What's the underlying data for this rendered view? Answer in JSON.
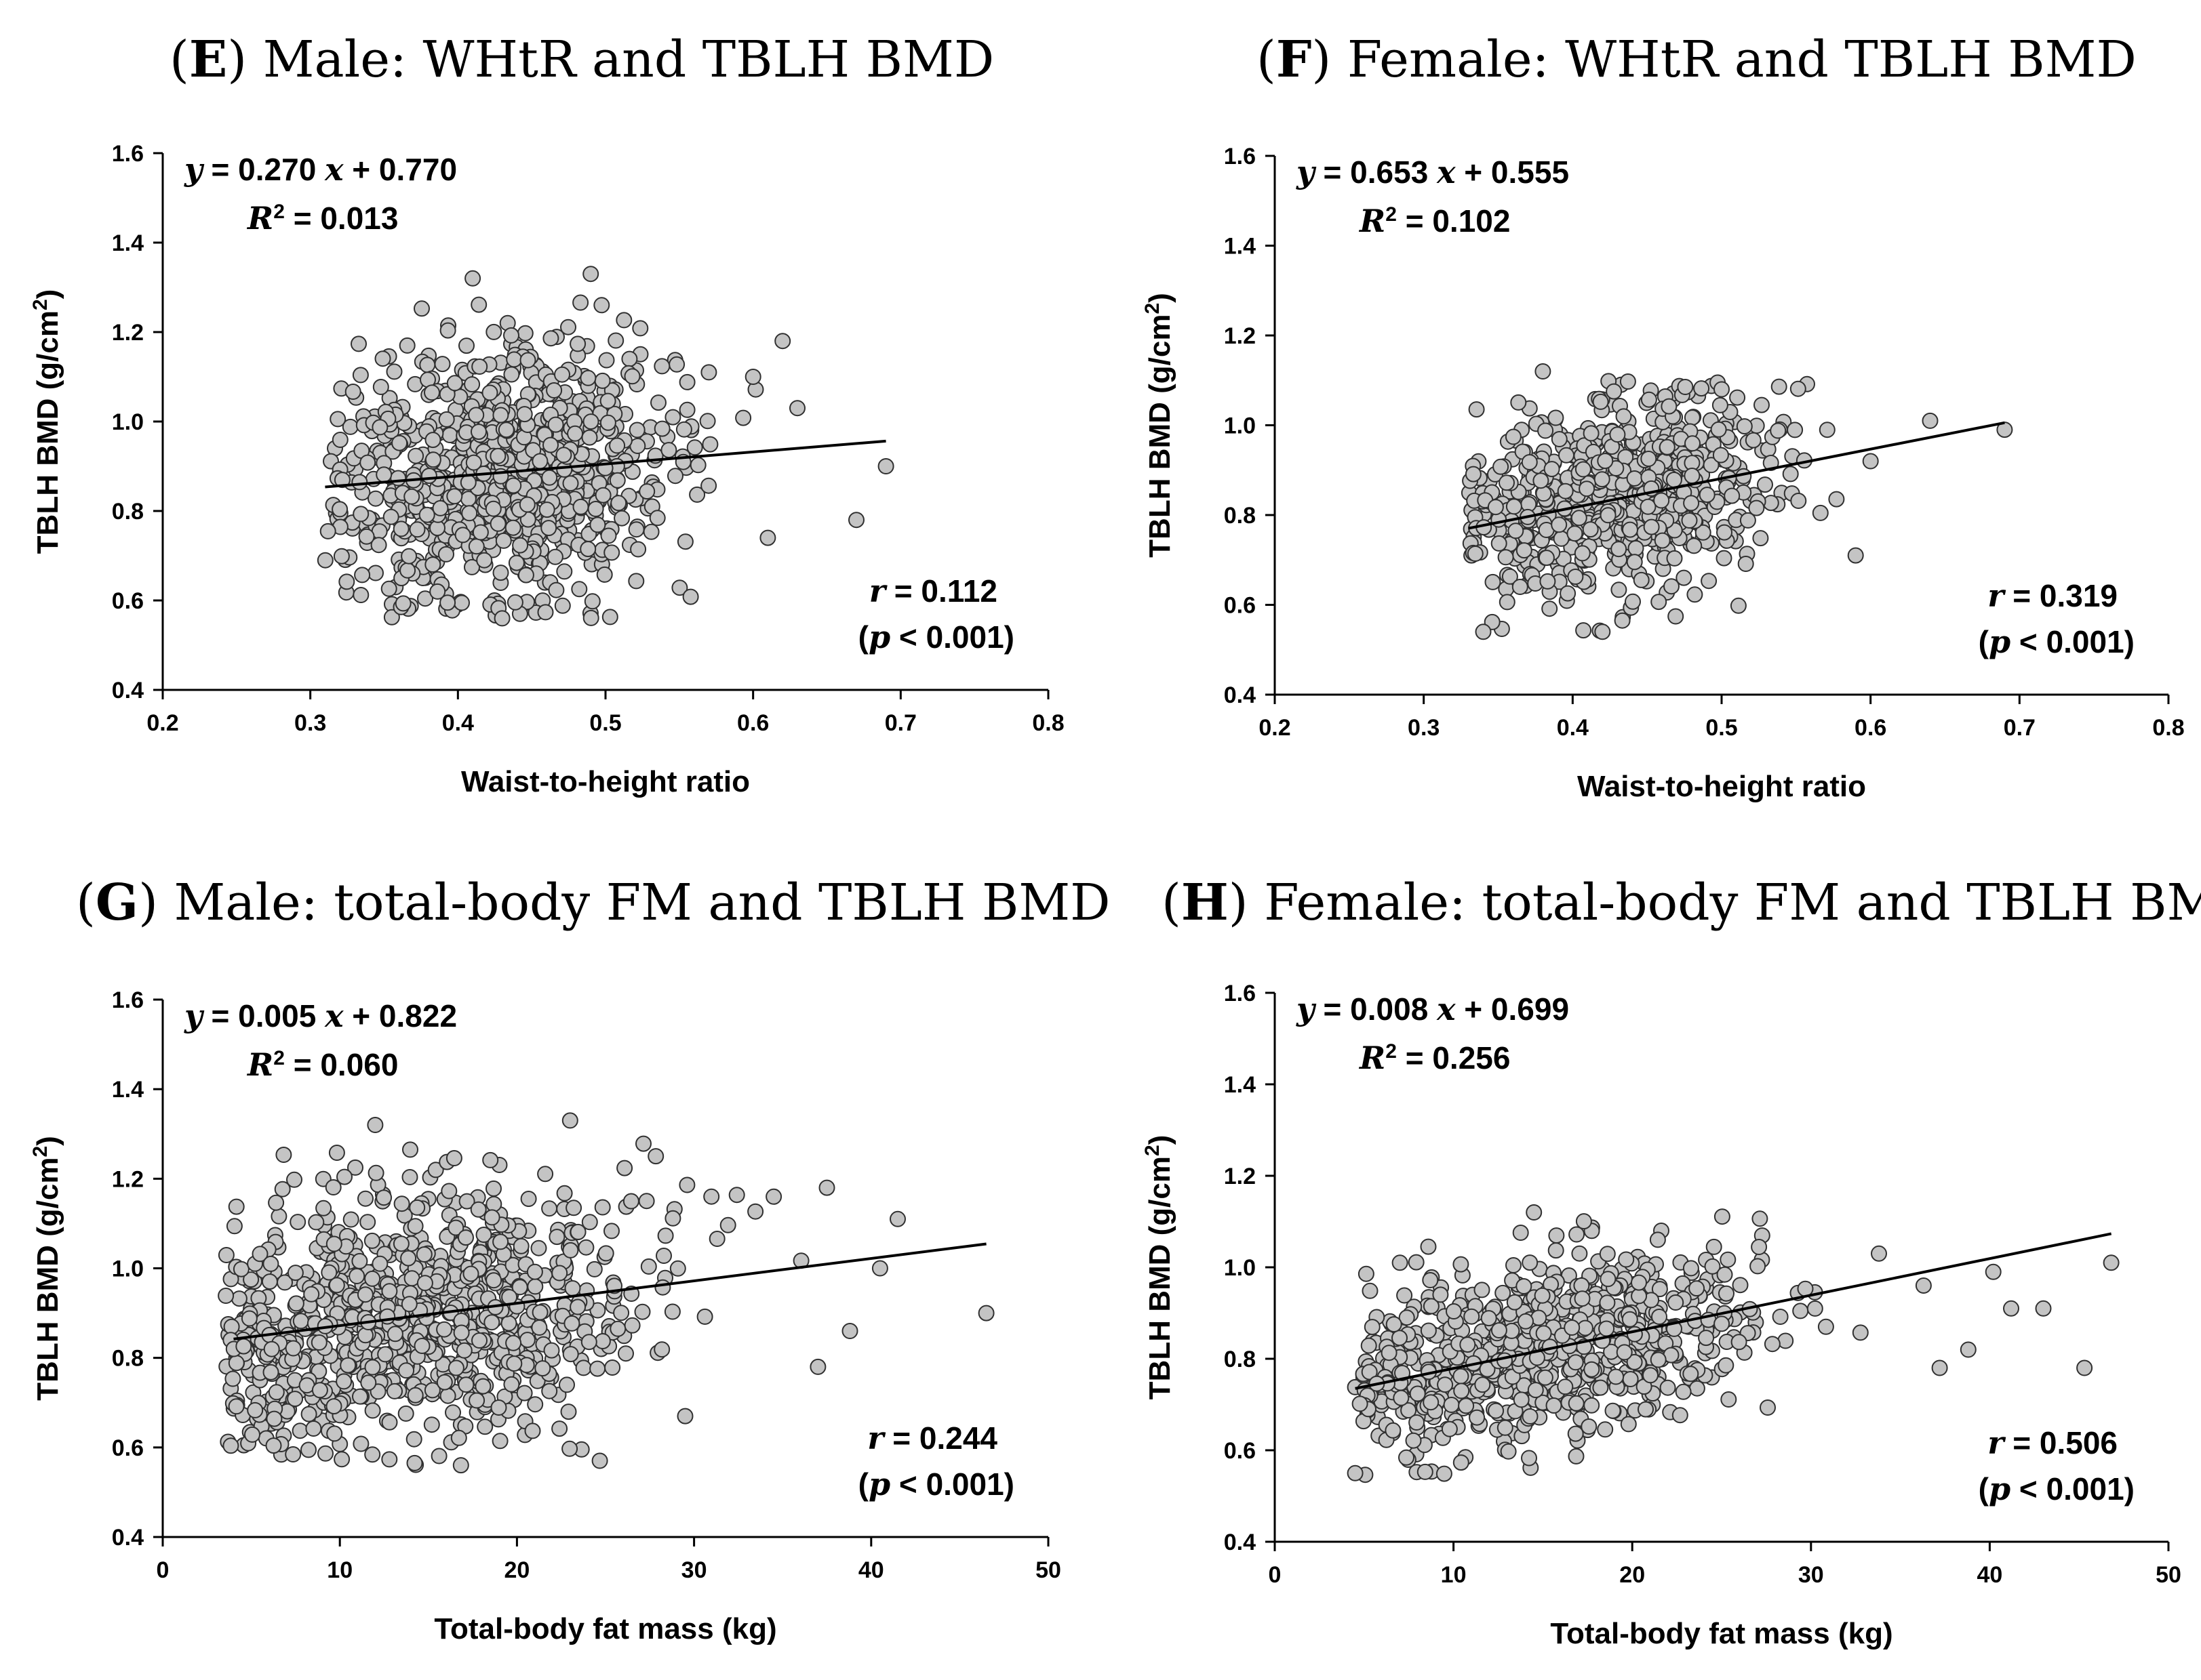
{
  "chart_data": [
    {
      "panel": "E",
      "type": "scatter",
      "title_letter": "E",
      "title_text": "Male: WHtR and TBLH BMD",
      "xlabel": "Waist-to-height ratio",
      "ylabel": "TBLH BMD (g/cm",
      "ylabel_sup": "2",
      "ylabel_close": ")",
      "xlim": [
        0.2,
        0.8
      ],
      "ylim": [
        0.4,
        1.6
      ],
      "xticks": [
        "0.2",
        "0.3",
        "0.4",
        "0.5",
        "0.6",
        "0.7",
        "0.8"
      ],
      "yticks": [
        "0.4",
        "0.6",
        "0.8",
        "1.0",
        "1.2",
        "1.4",
        "1.6"
      ],
      "equation": {
        "slope": "0.270",
        "intercept": "0.770",
        "r2": "0.013"
      },
      "r": "0.112",
      "p": "< 0.001",
      "fit": {
        "slope": 0.27,
        "intercept": 0.77,
        "x_start": 0.31,
        "x_end": 0.69
      },
      "points_gen": {
        "n": 900,
        "seed": 11,
        "x_mean": 0.43,
        "x_sd": 0.055,
        "x_min": 0.31,
        "x_max": 0.69,
        "resid_sd": 0.145,
        "y_min": 0.56,
        "y_max": 1.33
      },
      "extra_points": [
        [
          0.41,
          1.32
        ],
        [
          0.49,
          1.33
        ],
        [
          0.62,
          1.18
        ],
        [
          0.69,
          0.9
        ],
        [
          0.67,
          0.78
        ],
        [
          0.6,
          1.1
        ],
        [
          0.61,
          0.74
        ],
        [
          0.63,
          1.03
        ],
        [
          0.57,
          1.11
        ],
        [
          0.43,
          0.56
        ]
      ]
    },
    {
      "panel": "F",
      "type": "scatter",
      "title_letter": "F",
      "title_text": "Female: WHtR and TBLH BMD",
      "xlabel": "Waist-to-height ratio",
      "ylabel": "TBLH BMD (g/cm",
      "ylabel_sup": "2",
      "ylabel_close": ")",
      "xlim": [
        0.2,
        0.8
      ],
      "ylim": [
        0.4,
        1.6
      ],
      "xticks": [
        "0.2",
        "0.3",
        "0.4",
        "0.5",
        "0.6",
        "0.7",
        "0.8"
      ],
      "yticks": [
        "0.4",
        "0.6",
        "0.8",
        "1.0",
        "1.2",
        "1.4",
        "1.6"
      ],
      "equation": {
        "slope": "0.653",
        "intercept": "0.555",
        "r2": "0.102"
      },
      "r": "0.319",
      "p": "< 0.001",
      "fit": {
        "slope": 0.653,
        "intercept": 0.555,
        "x_start": 0.33,
        "x_end": 0.69
      },
      "points_gen": {
        "n": 750,
        "seed": 23,
        "x_mean": 0.43,
        "x_sd": 0.05,
        "x_min": 0.33,
        "x_max": 0.6,
        "resid_sd": 0.1,
        "y_min": 0.54,
        "y_max": 1.1
      },
      "extra_points": [
        [
          0.69,
          0.99
        ],
        [
          0.64,
          1.01
        ],
        [
          0.6,
          0.92
        ],
        [
          0.59,
          0.71
        ],
        [
          0.38,
          1.12
        ],
        [
          0.42,
          0.54
        ],
        [
          0.34,
          0.54
        ],
        [
          0.5,
          1.08
        ]
      ]
    },
    {
      "panel": "G",
      "type": "scatter",
      "title_letter": "G",
      "title_text": "Male: total-body FM and TBLH BMD",
      "xlabel": "Total-body fat mass (kg)",
      "ylabel": "TBLH BMD (g/cm",
      "ylabel_sup": "2",
      "ylabel_close": ")",
      "xlim": [
        0,
        50
      ],
      "ylim": [
        0.4,
        1.6
      ],
      "xticks": [
        "0",
        "10",
        "20",
        "30",
        "40",
        "50"
      ],
      "yticks": [
        "0.4",
        "0.6",
        "0.8",
        "1.0",
        "1.2",
        "1.4",
        "1.6"
      ],
      "equation": {
        "slope": "0.005",
        "intercept": "0.822",
        "r2": "0.060"
      },
      "r": "0.244",
      "p": "< 0.001",
      "fit": {
        "slope": 0.005,
        "intercept": 0.822,
        "x_start": 4,
        "x_end": 46.5
      },
      "points_gen": {
        "n": 950,
        "seed": 37,
        "x_mean": 14,
        "x_sd": 6.5,
        "x_min": 3.5,
        "x_max": 38,
        "resid_sd": 0.14,
        "y_min": 0.56,
        "y_max": 1.33
      },
      "extra_points": [
        [
          46.5,
          0.9
        ],
        [
          41.5,
          1.11
        ],
        [
          40.5,
          1.0
        ],
        [
          38.8,
          0.86
        ],
        [
          37.5,
          1.18
        ],
        [
          37,
          0.78
        ],
        [
          23,
          1.33
        ],
        [
          12,
          1.32
        ],
        [
          29.5,
          0.67
        ],
        [
          34.5,
          1.16
        ]
      ]
    },
    {
      "panel": "H",
      "type": "scatter",
      "title_letter": "H",
      "title_text": "Female: total-body FM and TBLH BMD",
      "xlabel": "Total-body fat mass (kg)",
      "ylabel": "TBLH BMD (g/cm",
      "ylabel_sup": "2",
      "ylabel_close": ")",
      "xlim": [
        0,
        50
      ],
      "ylim": [
        0.4,
        1.6
      ],
      "xticks": [
        "0",
        "10",
        "20",
        "30",
        "40",
        "50"
      ],
      "yticks": [
        "0.4",
        "0.6",
        "0.8",
        "1.0",
        "1.2",
        "1.4",
        "1.6"
      ],
      "equation": {
        "slope": "0.008",
        "intercept": "0.699",
        "r2": "0.256"
      },
      "r": "0.506",
      "p": "< 0.001",
      "fit": {
        "slope": 0.008,
        "intercept": 0.699,
        "x_start": 4.5,
        "x_end": 46.8
      },
      "points_gen": {
        "n": 800,
        "seed": 59,
        "x_mean": 15,
        "x_sd": 6,
        "x_min": 4.5,
        "x_max": 33,
        "resid_sd": 0.095,
        "y_min": 0.54,
        "y_max": 1.12
      },
      "extra_points": [
        [
          46.8,
          1.01
        ],
        [
          45.3,
          0.78
        ],
        [
          43,
          0.91
        ],
        [
          41.2,
          0.91
        ],
        [
          40.2,
          0.99
        ],
        [
          38.8,
          0.82
        ],
        [
          37.2,
          0.78
        ],
        [
          36.3,
          0.96
        ],
        [
          33.8,
          1.03
        ],
        [
          14.5,
          1.12
        ],
        [
          4.5,
          0.55
        ]
      ]
    }
  ],
  "colors": {
    "marker_fill": "#c4c4c4",
    "marker_stroke": "#303030",
    "fit_line": "#000000"
  }
}
